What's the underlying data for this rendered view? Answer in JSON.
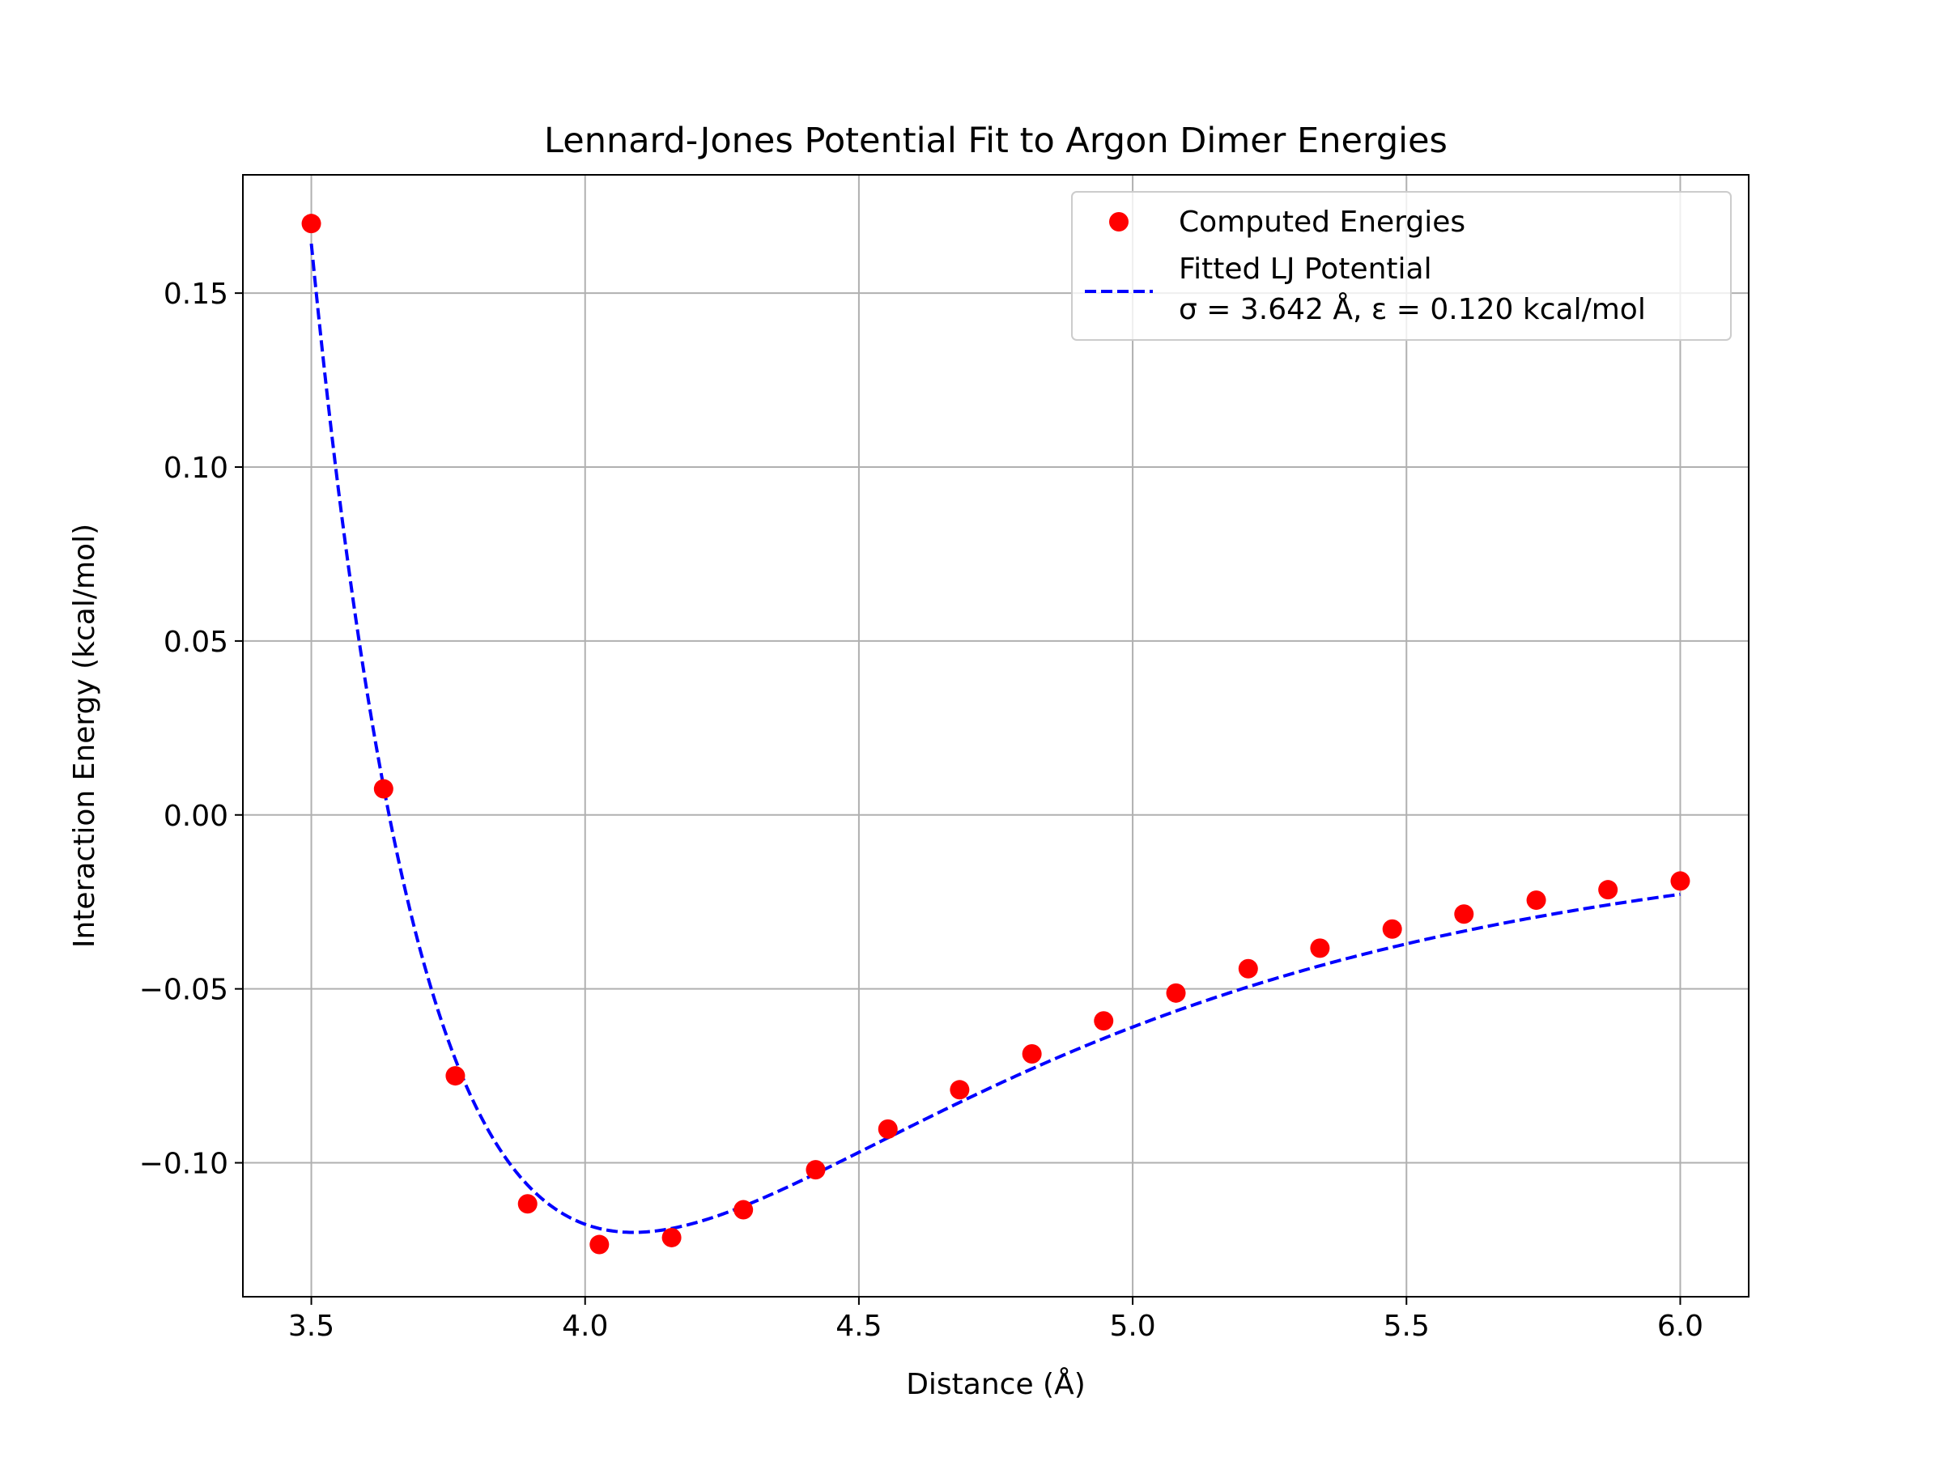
{
  "chart_data": {
    "type": "scatter",
    "title": "Lennard-Jones Potential Fit to Argon Dimer Energies",
    "xlabel": "Distance (Å)",
    "ylabel": "Interaction Energy (kcal/mol)",
    "xlim": [
      3.375,
      6.125
    ],
    "ylim": [
      -0.1385,
      0.184
    ],
    "xticks": [
      3.5,
      4.0,
      4.5,
      5.0,
      5.5,
      6.0
    ],
    "xtick_labels": [
      "3.5",
      "4.0",
      "4.5",
      "5.0",
      "5.5",
      "6.0"
    ],
    "yticks": [
      -0.1,
      -0.05,
      0.0,
      0.05,
      0.1,
      0.15
    ],
    "ytick_labels": [
      "−0.10",
      "−0.05",
      "0.00",
      "0.05",
      "0.10",
      "0.15"
    ],
    "grid": true,
    "legend_position": "top-right",
    "series": [
      {
        "name": "Computed Energies",
        "kind": "scatter",
        "color": "#ff0000",
        "x": [
          3.5,
          3.632,
          3.763,
          3.895,
          4.026,
          4.158,
          4.289,
          4.421,
          4.553,
          4.684,
          4.816,
          4.947,
          5.079,
          5.211,
          5.342,
          5.474,
          5.605,
          5.737,
          5.868,
          6.0
        ],
        "y": [
          0.17,
          0.0075,
          -0.075,
          -0.1118,
          -0.1235,
          -0.1215,
          -0.1135,
          -0.102,
          -0.0903,
          -0.079,
          -0.0687,
          -0.0592,
          -0.0512,
          -0.0442,
          -0.0383,
          -0.0328,
          -0.0285,
          -0.0245,
          -0.0215,
          -0.019
        ]
      },
      {
        "name": "Fitted LJ Potential\nσ = 3.642 Å, ε = 0.120 kcal/mol",
        "name_lines": [
          "Fitted LJ Potential",
          "σ = 3.642 Å, ε = 0.120 kcal/mol"
        ],
        "kind": "line",
        "style": "dashed",
        "color": "#0000ff",
        "sigma": 3.642,
        "epsilon": 0.12,
        "x_range": [
          3.5,
          6.0
        ]
      }
    ]
  }
}
